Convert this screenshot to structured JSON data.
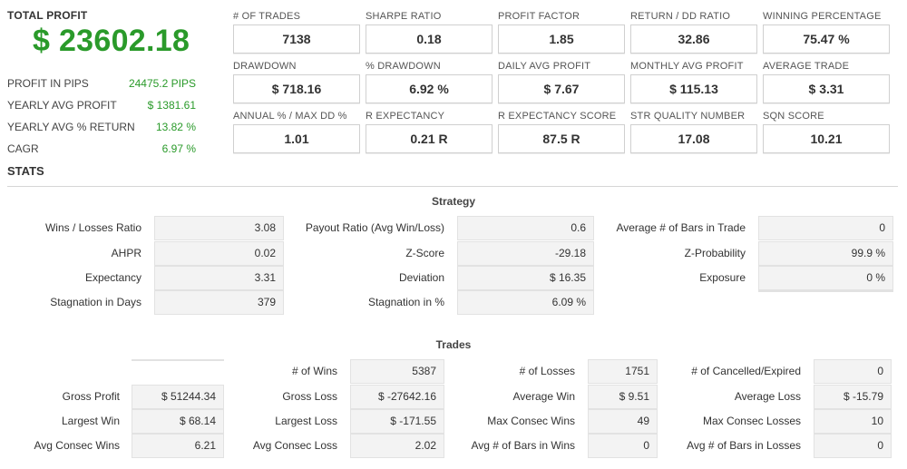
{
  "summary": {
    "title": "TOTAL PROFIT",
    "total": "$ 23602.18",
    "rows": [
      {
        "label": "PROFIT IN PIPS",
        "value": "24475.2 PIPS"
      },
      {
        "label": "YEARLY AVG PROFIT",
        "value": "$ 1381.61"
      },
      {
        "label": "YEARLY AVG % RETURN",
        "value": "13.82 %"
      },
      {
        "label": "CAGR",
        "value": "6.97 %"
      }
    ],
    "colors": {
      "positive": "#2a9a2a"
    }
  },
  "metrics": [
    {
      "label": "# OF TRADES",
      "value": "7138"
    },
    {
      "label": "SHARPE RATIO",
      "value": "0.18"
    },
    {
      "label": "PROFIT FACTOR",
      "value": "1.85"
    },
    {
      "label": "RETURN / DD RATIO",
      "value": "32.86"
    },
    {
      "label": "WINNING PERCENTAGE",
      "value": "75.47 %"
    },
    {
      "label": "DRAWDOWN",
      "value": "$ 718.16"
    },
    {
      "label": "% DRAWDOWN",
      "value": "6.92 %"
    },
    {
      "label": "DAILY AVG PROFIT",
      "value": "$ 7.67"
    },
    {
      "label": "MONTHLY AVG PROFIT",
      "value": "$ 115.13"
    },
    {
      "label": "AVERAGE TRADE",
      "value": "$ 3.31"
    },
    {
      "label": "ANNUAL % / MAX DD %",
      "value": "1.01"
    },
    {
      "label": "R EXPECTANCY",
      "value": "0.21 R"
    },
    {
      "label": "R EXPECTANCY SCORE",
      "value": "87.5 R"
    },
    {
      "label": "STR QUALITY NUMBER",
      "value": "17.08"
    },
    {
      "label": "SQN SCORE",
      "value": "10.21"
    }
  ],
  "stats": {
    "title": "STATS",
    "strategy": {
      "title": "Strategy",
      "rows": [
        [
          {
            "label": "Wins / Losses Ratio",
            "value": "3.08"
          },
          {
            "label": "Payout Ratio (Avg Win/Loss)",
            "value": "0.6"
          },
          {
            "label": "Average # of Bars in Trade",
            "value": "0"
          }
        ],
        [
          {
            "label": "AHPR",
            "value": "0.02"
          },
          {
            "label": "Z-Score",
            "value": "-29.18"
          },
          {
            "label": "Z-Probability",
            "value": "99.9 %"
          }
        ],
        [
          {
            "label": "Expectancy",
            "value": "3.31"
          },
          {
            "label": "Deviation",
            "value": "$ 16.35"
          },
          {
            "label": "Exposure",
            "value": "0 %"
          }
        ],
        [
          {
            "label": "Stagnation in Days",
            "value": "379"
          },
          {
            "label": "Stagnation in %",
            "value": "6.09 %"
          },
          {
            "label": "",
            "value": ""
          }
        ]
      ]
    },
    "trades": {
      "title": "Trades",
      "rows": [
        [
          {
            "label": "",
            "value": ""
          },
          {
            "label": "# of Wins",
            "value": "5387"
          },
          {
            "label": "# of Losses",
            "value": "1751"
          },
          {
            "label": "# of Cancelled/Expired",
            "value": "0"
          }
        ],
        [
          {
            "label": "Gross Profit",
            "value": "$ 51244.34"
          },
          {
            "label": "Gross Loss",
            "value": "$ -27642.16"
          },
          {
            "label": "Average Win",
            "value": "$ 9.51"
          },
          {
            "label": "Average Loss",
            "value": "$ -15.79"
          }
        ],
        [
          {
            "label": "Largest Win",
            "value": "$ 68.14"
          },
          {
            "label": "Largest Loss",
            "value": "$ -171.55"
          },
          {
            "label": "Max Consec Wins",
            "value": "49"
          },
          {
            "label": "Max Consec Losses",
            "value": "10"
          }
        ],
        [
          {
            "label": "Avg Consec Wins",
            "value": "6.21"
          },
          {
            "label": "Avg Consec Loss",
            "value": "2.02"
          },
          {
            "label": "Avg # of Bars in Wins",
            "value": "0"
          },
          {
            "label": "Avg # of Bars in Losses",
            "value": "0"
          }
        ]
      ]
    }
  }
}
